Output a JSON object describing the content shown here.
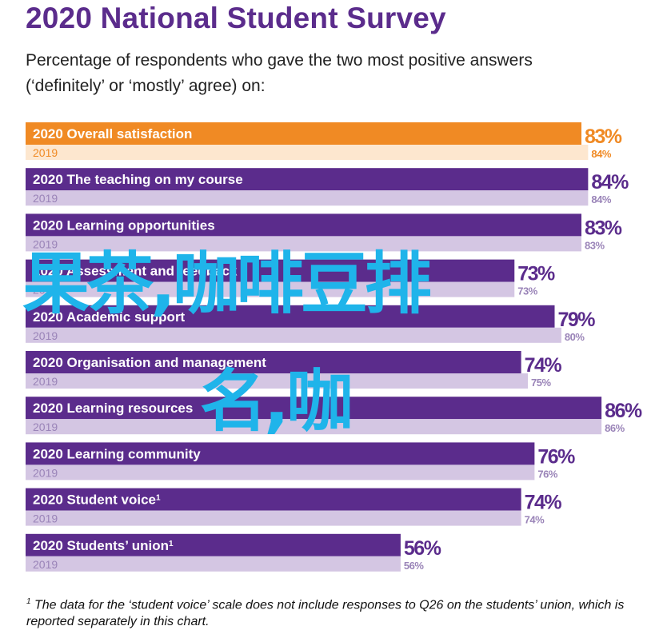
{
  "title": "2020 National Student Survey",
  "subtitle": "Percentage of respondents who gave the two most positive answers\n(‘definitely’ or ‘mostly’ agree) on:",
  "watermark_line1": "果茶,咖啡豆排",
  "watermark_line2": "名,咖",
  "footnote_marker": "1",
  "footnote_text": " The data for the ‘student voice’ scale does not include responses to Q26 on the students’ union, which is reported separately in this chart.",
  "colors": {
    "title": "#5b2c8c",
    "highlight_2020": "#f08a24",
    "highlight_2019": "#fde7cf",
    "bar_2020": "#5b2c8c",
    "bar_2019": "#d4c6e3",
    "label_2019": "#9a84b8",
    "watermark": "#1fb4ea"
  },
  "chart_data": {
    "type": "bar",
    "orientation": "horizontal",
    "unit": "%",
    "series_names": [
      "2020",
      "2019"
    ],
    "categories": [
      {
        "label": "Overall satisfaction",
        "footnote": "",
        "v2020": 83,
        "v2019": 84,
        "highlight": true
      },
      {
        "label": "The teaching on my course",
        "footnote": "",
        "v2020": 84,
        "v2019": 84,
        "highlight": false
      },
      {
        "label": "Learning opportunities",
        "footnote": "",
        "v2020": 83,
        "v2019": 83,
        "highlight": false
      },
      {
        "label": "Assessment and feedback",
        "footnote": "",
        "v2020": 73,
        "v2019": 73,
        "highlight": false
      },
      {
        "label": "Academic support",
        "footnote": "",
        "v2020": 79,
        "v2019": 80,
        "highlight": false
      },
      {
        "label": "Organisation and management",
        "footnote": "",
        "v2020": 74,
        "v2019": 75,
        "highlight": false
      },
      {
        "label": "Learning resources",
        "footnote": "",
        "v2020": 86,
        "v2019": 86,
        "highlight": false
      },
      {
        "label": "Learning community",
        "footnote": "",
        "v2020": 76,
        "v2019": 76,
        "highlight": false
      },
      {
        "label": "Student voice",
        "footnote": "1",
        "v2020": 74,
        "v2019": 74,
        "highlight": false
      },
      {
        "label": "Students’ union",
        "footnote": "1",
        "v2020": 56,
        "v2019": 56,
        "highlight": false
      }
    ],
    "xlim": [
      0,
      100
    ]
  }
}
